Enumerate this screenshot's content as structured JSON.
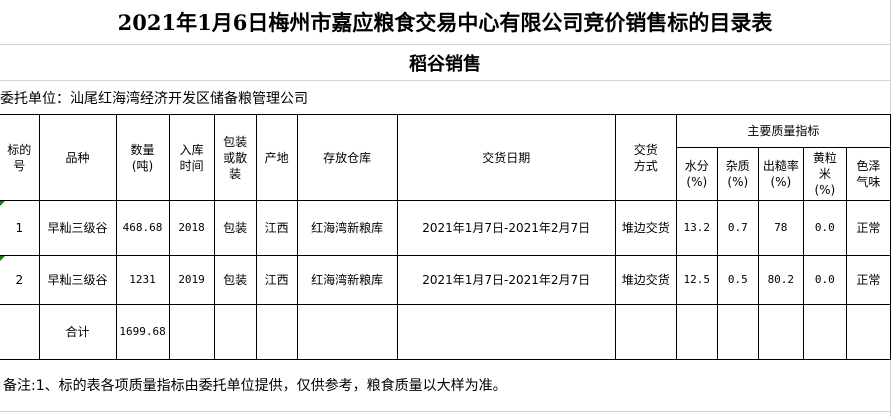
{
  "title": "2021年1月6日梅州市嘉应粮食交易中心有限公司竞价销售标的目录表",
  "subtitle": "稻谷销售",
  "consignor": "委托单位：汕尾红海湾经济开发区储备粮管理公司",
  "headers": {
    "lot_no": "标的号",
    "variety": "品种",
    "quantity": "数量(吨)",
    "storage_year": "入库时间",
    "packing": "包装或散装",
    "origin": "产地",
    "warehouse": "存放仓库",
    "delivery_date": "交货日期",
    "delivery_method": "交货方式",
    "quality_group": "主要质量指标",
    "moisture": "水分(%)",
    "impurity": "杂质(%)",
    "yield": "出糙率(%)",
    "yellow": "黄粒米(%)",
    "color_smell": "色泽气味"
  },
  "rows": [
    {
      "lot_no": "1",
      "variety": "早籼三级谷",
      "quantity": "468.68",
      "storage_year": "2018",
      "packing": "包装",
      "origin": "江西",
      "warehouse": "红海湾新粮库",
      "delivery_date": "2021年1月7日-2021年2月7日",
      "delivery_method": "堆边交货",
      "moisture": "13.2",
      "impurity": "0.7",
      "yield": "78",
      "yellow": "0.0",
      "color_smell": "正常"
    },
    {
      "lot_no": "2",
      "variety": "早籼三级谷",
      "quantity": "1231",
      "storage_year": "2019",
      "packing": "包装",
      "origin": "江西",
      "warehouse": "红海湾新粮库",
      "delivery_date": "2021年1月7日-2021年2月7日",
      "delivery_method": "堆边交货",
      "moisture": "12.5",
      "impurity": "0.5",
      "yield": "80.2",
      "yellow": "0.0",
      "color_smell": "正常"
    }
  ],
  "total": {
    "label": "合计",
    "quantity": "1699.68"
  },
  "note": "备注:1、标的表各项质量指标由委托单位提供，仅供参考，粮食质量以大样为准。"
}
